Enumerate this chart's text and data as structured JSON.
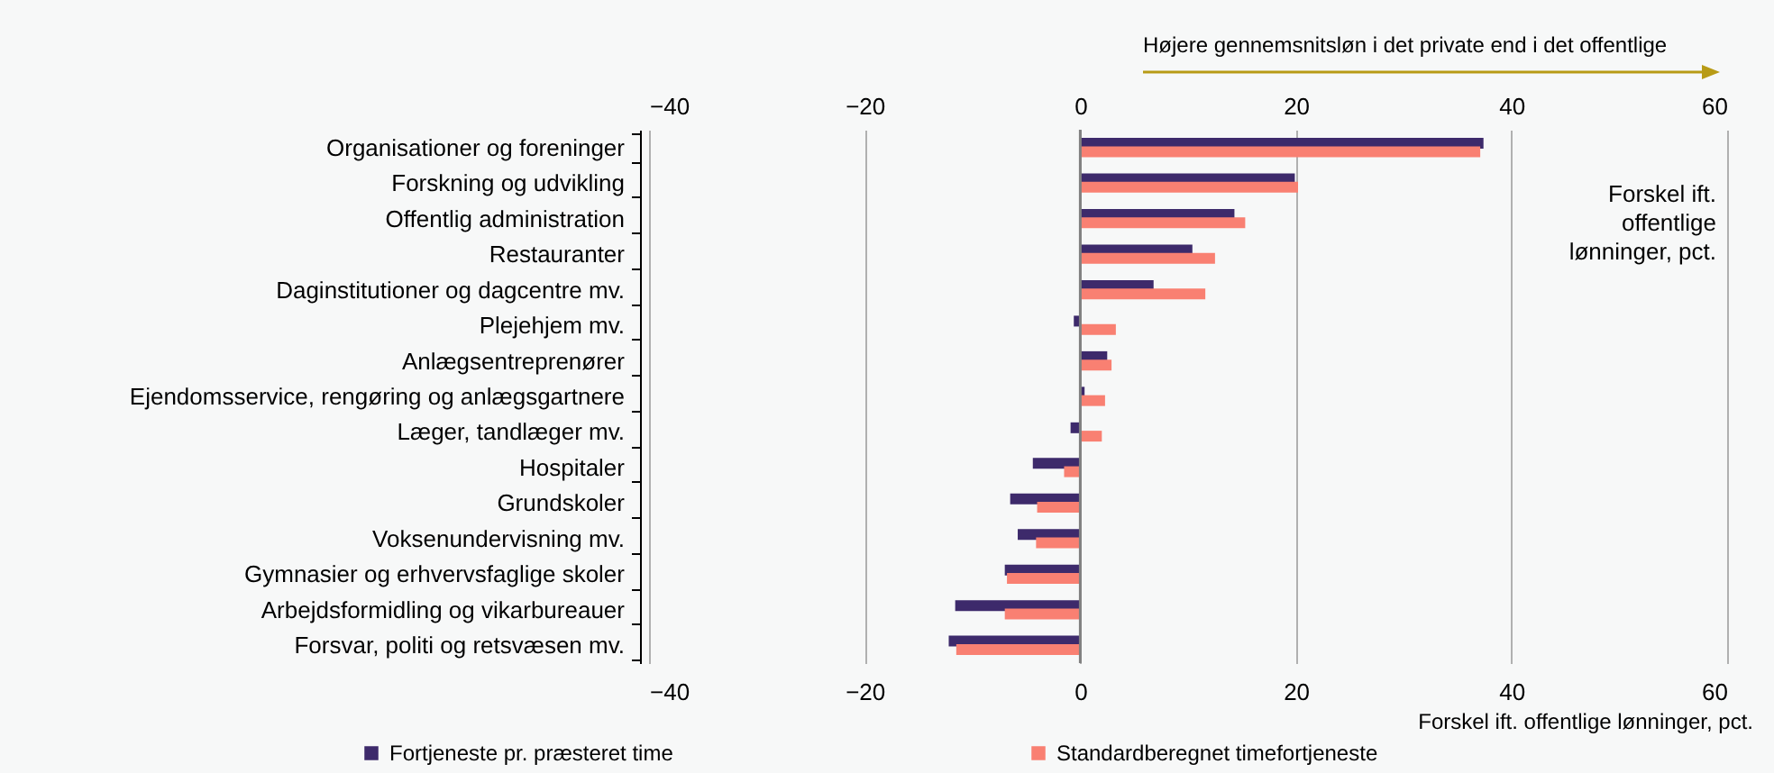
{
  "chart_data": {
    "type": "bar",
    "orientation": "horizontal",
    "categories": [
      "Organisationer og foreninger",
      "Forskning og udvikling",
      "Offentlig administration",
      "Restauranter",
      "Daginstitutioner og dagcentre mv.",
      "Plejehjem mv.",
      "Anlægsentreprenører",
      "Ejendomsservice, rengøring og anlægsgartnere",
      "Læger, tandlæger mv.",
      "Hospitaler",
      "Grundskoler",
      "Voksenundervisning mv.",
      "Gymnasier og erhvervsfaglige skoler",
      "Arbejdsformidling og vikarbureauer",
      "Forsvar, politi og retsvæsen mv."
    ],
    "series": [
      {
        "name": "Fortjeneste pr. præsteret time",
        "color": "#3d2a6b",
        "values": [
          37.4,
          19.9,
          14.3,
          10.4,
          6.8,
          -0.6,
          2.5,
          0.4,
          -0.9,
          -4.4,
          -6.5,
          -5.8,
          -7.0,
          -11.6,
          -12.2
        ]
      },
      {
        "name": "Standardberegnet timefortjeneste",
        "color": "#f98072",
        "values": [
          37.1,
          20.2,
          15.3,
          12.5,
          11.6,
          3.3,
          2.9,
          2.3,
          2.0,
          -1.5,
          -4.0,
          -4.1,
          -6.8,
          -7.0,
          -11.5
        ]
      }
    ],
    "xlim": [
      -40,
      60
    ],
    "xticks": [
      -40,
      -20,
      0,
      20,
      40,
      60
    ],
    "x2lim": [
      -40,
      60
    ],
    "x2ticks": [
      -40,
      -20,
      0,
      20,
      40,
      60
    ],
    "xlabel": "Forskel ift. offentlige lønninger, pct.",
    "ref_lines": [
      {
        "axis": "x",
        "value": 0,
        "color": "#808080"
      }
    ],
    "annotations": [
      "Højere gennemsnitsløn i det private end i det offentlige",
      "Forskel ift.\noffentlige\nlønninger, pct."
    ],
    "grid": "x",
    "legend": "bottom"
  }
}
